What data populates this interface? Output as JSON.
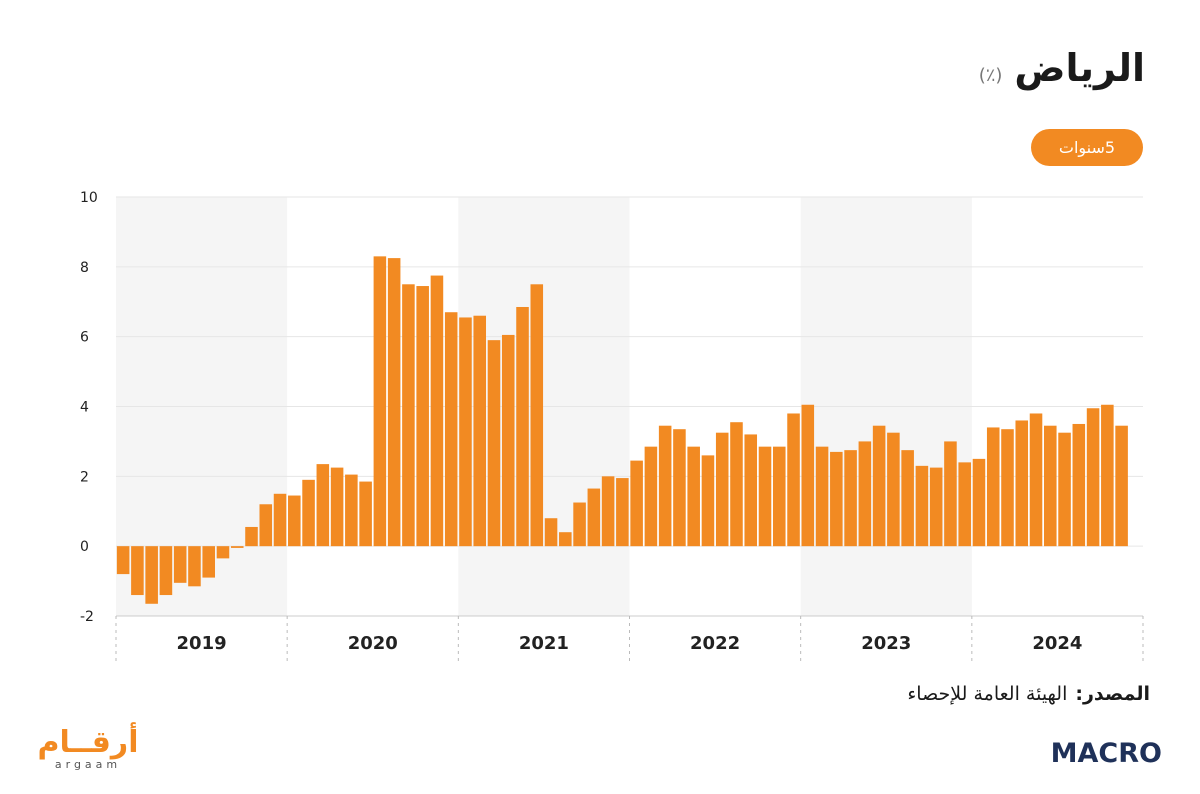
{
  "header": {
    "title": "الرياض",
    "unit": "(٪)"
  },
  "controls": {
    "period_label": "5سنوات"
  },
  "footer": {
    "source_label": "المصدر:",
    "source_value": "الهيئة العامة للإحصاء"
  },
  "logos": {
    "left_text": "أرقــام",
    "left_sub": "argaam",
    "right_text": "MACRO"
  },
  "colors": {
    "bar": "#F28A22",
    "band": "#F5F5F5",
    "grid": "#E6E6E6",
    "accent": "#F28A22",
    "macro": "#1F3159"
  },
  "chart_data": {
    "type": "bar",
    "ylim": [
      -2,
      10
    ],
    "y_ticks": [
      -2,
      0,
      2,
      4,
      6,
      8,
      10
    ],
    "grid": true,
    "years": [
      "2019",
      "2020",
      "2021",
      "2022",
      "2023",
      "2024"
    ],
    "months_per_year": 12,
    "values": [
      -0.8,
      -1.4,
      -1.65,
      -1.4,
      -1.05,
      -1.15,
      -0.9,
      -0.35,
      -0.05,
      0.55,
      1.2,
      1.5,
      1.45,
      1.9,
      2.35,
      2.25,
      2.05,
      1.85,
      8.3,
      8.25,
      7.5,
      7.45,
      7.75,
      6.7,
      6.55,
      6.6,
      5.9,
      6.05,
      6.85,
      7.5,
      0.8,
      0.4,
      1.25,
      1.65,
      2.0,
      1.95,
      2.45,
      2.85,
      3.45,
      3.35,
      2.85,
      2.6,
      3.25,
      3.55,
      3.2,
      2.85,
      2.85,
      3.8,
      4.05,
      2.85,
      2.7,
      2.75,
      3.0,
      3.45,
      3.25,
      2.75,
      2.3,
      2.25,
      3.0,
      2.4,
      2.5,
      3.4,
      3.35,
      3.6,
      3.8,
      3.45,
      3.25,
      3.5,
      3.95,
      4.05,
      3.45
    ]
  }
}
